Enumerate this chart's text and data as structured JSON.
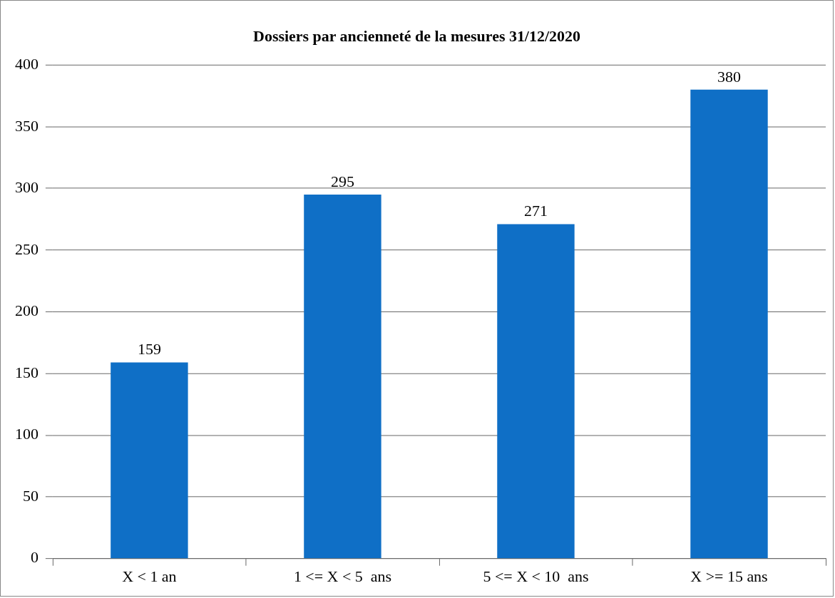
{
  "chart_data": {
    "type": "bar",
    "title": "Dossiers par ancienneté de la mesures 31/12/2020",
    "categories": [
      "X < 1 an",
      "1 <= X < 5  ans",
      "5 <= X < 10  ans",
      "X >= 15 ans"
    ],
    "values": [
      159,
      295,
      271,
      380
    ],
    "color": "#0f6fc6",
    "ylim": [
      0,
      400
    ],
    "yticks": [
      0,
      50,
      100,
      150,
      200,
      250,
      300,
      350,
      400
    ],
    "grid": "y",
    "legend": false,
    "data_labels": true
  }
}
